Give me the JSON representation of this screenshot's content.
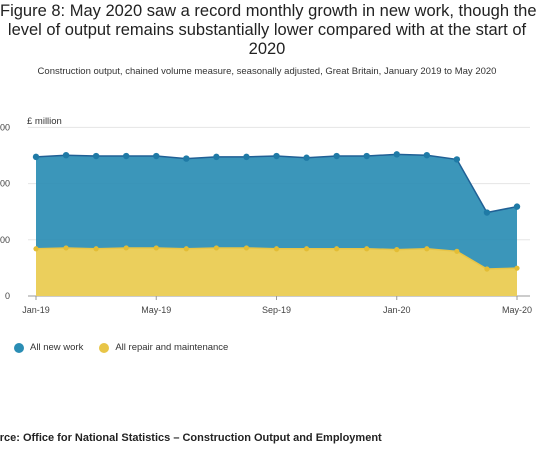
{
  "title_lines": [
    "Figure 8: May 2020 saw a record monthly growth in new work, though the",
    "level of output remains substantially lower compared with at the start of",
    "2020"
  ],
  "subtitle": "Construction output, chained volume measure, seasonally adjusted, Great Britain, January 2019 to May 2020",
  "unit_label": "£ million",
  "source": "urce: Office for National Statistics – Construction Output and Employment",
  "colors": {
    "all_new_work": "#206095",
    "all_new_work_fill": "#2a8db4",
    "repair": "#e8c547",
    "repair_fill": "#ebcf5c"
  },
  "chart_data": {
    "type": "area",
    "stacked": true,
    "x": [
      "Jan-19",
      "Feb-19",
      "Mar-19",
      "Apr-19",
      "May-19",
      "Jun-19",
      "Jul-19",
      "Aug-19",
      "Sep-19",
      "Oct-19",
      "Nov-19",
      "Dec-19",
      "Jan-20",
      "Feb-20",
      "Mar-20",
      "Apr-20",
      "May-20"
    ],
    "x_tick_labels": [
      "Jan-19",
      "May-19",
      "Sep-19",
      "Jan-20",
      "May-20"
    ],
    "y_tick_labels": [
      "0",
      "000",
      "000",
      "000"
    ],
    "ylabel": "£ million",
    "series": [
      {
        "name": "All repair and maintenance",
        "values": [
          5.6,
          5.7,
          5.6,
          5.7,
          5.7,
          5.6,
          5.7,
          5.7,
          5.6,
          5.6,
          5.6,
          5.6,
          5.5,
          5.6,
          5.3,
          3.2,
          3.3
        ]
      },
      {
        "name": "All new work",
        "values": [
          10.9,
          11.0,
          11.0,
          10.9,
          10.9,
          10.7,
          10.8,
          10.8,
          11.0,
          10.8,
          11.0,
          11.0,
          11.3,
          11.1,
          10.9,
          6.7,
          7.3
        ]
      }
    ],
    "cumulative_totals": [
      16.5,
      16.7,
      16.6,
      16.6,
      16.6,
      16.3,
      16.5,
      16.5,
      16.6,
      16.4,
      16.6,
      16.6,
      16.8,
      16.7,
      16.2,
      9.9,
      10.6
    ],
    "ylim": [
      0,
      20.4
    ],
    "legend": "bottom-left",
    "grid": true
  },
  "legend_items": [
    {
      "label": "All new work"
    },
    {
      "label": "All repair and maintenance"
    }
  ]
}
